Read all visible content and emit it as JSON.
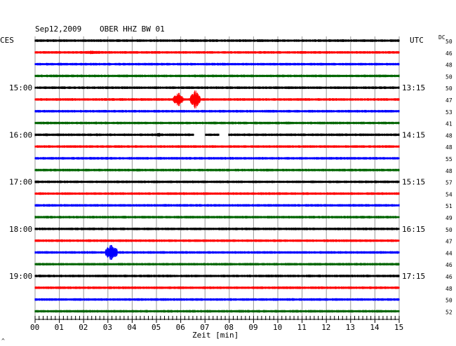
{
  "chart_data": {
    "type": "line",
    "title": "Sep12,2009",
    "station": "OBER HHZ BW 01",
    "left_axis_label": "CES",
    "right_axis_label": "UTC",
    "dc_label": "DC",
    "xlabel": "Zeit [min]",
    "xlim": [
      0,
      15
    ],
    "x_ticks": [
      "00",
      "01",
      "02",
      "03",
      "04",
      "05",
      "06",
      "07",
      "08",
      "09",
      "10",
      "11",
      "12",
      "13",
      "14",
      "15"
    ],
    "grid": true,
    "left_time_labels": [
      {
        "row": 4,
        "text": "15:00"
      },
      {
        "row": 8,
        "text": "16:00"
      },
      {
        "row": 12,
        "text": "17:00"
      },
      {
        "row": 16,
        "text": "18:00"
      },
      {
        "row": 20,
        "text": "19:00"
      }
    ],
    "right_time_labels": [
      {
        "row": 4,
        "text": "13:15"
      },
      {
        "row": 8,
        "text": "14:15"
      },
      {
        "row": 12,
        "text": "15:15"
      },
      {
        "row": 16,
        "text": "16:15"
      },
      {
        "row": 20,
        "text": "17:15"
      }
    ],
    "dc_values": [
      "50",
      "46",
      "48",
      "50",
      "50",
      "47",
      "53",
      "41",
      "48",
      "48",
      "55",
      "48",
      "57",
      "54",
      "51",
      "49",
      "50",
      "47",
      "44",
      "46",
      "46",
      "48",
      "50",
      "52"
    ],
    "trace_colors": [
      "#000000",
      "#ff0000",
      "#0000ff",
      "#006400"
    ],
    "events": [
      {
        "row": 1,
        "t_start": 1.9,
        "t_end": 2.9,
        "amplitude": 3,
        "color": "#ff0000"
      },
      {
        "row": 5,
        "t_start": 5.7,
        "t_end": 6.1,
        "amplitude": 11,
        "color": "#ff0000"
      },
      {
        "row": 5,
        "t_start": 6.4,
        "t_end": 6.8,
        "amplitude": 14,
        "color": "#ff0000"
      },
      {
        "row": 8,
        "t_start": 4.9,
        "t_end": 5.3,
        "amplitude": 3,
        "color": "#000000"
      },
      {
        "row": 18,
        "t_start": 2.9,
        "t_end": 3.4,
        "amplitude": 13,
        "color": "#0000ff"
      }
    ],
    "gaps": [
      {
        "row": 8,
        "t_start": 6.55,
        "t_end": 7.0
      },
      {
        "row": 8,
        "t_start": 7.6,
        "t_end": 7.95
      }
    ]
  },
  "footer_mark": "^"
}
